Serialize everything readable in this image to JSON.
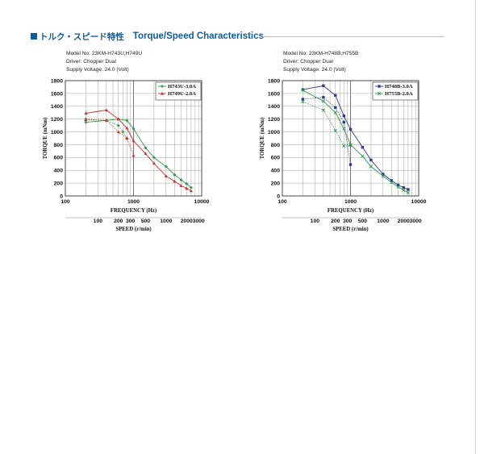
{
  "header": {
    "title_jp": "トルク・スピード特性",
    "title_en": "Torque/Speed Characteristics",
    "accent_color": "#0f5c98"
  },
  "chart_data": [
    {
      "type": "line",
      "info": [
        "Model No: 23KM-H743U,H749U",
        "Driver: Chopper Dual",
        "Supply Voltage: 24.0 (Volt)"
      ],
      "ylabel": "TORQUE (mNm)",
      "xlabel": "FREQUENCY (Hz)",
      "x2label": "SPEED (r/min)",
      "x_scale": "log",
      "xlim": [
        100,
        10000
      ],
      "ylim": [
        0,
        1800
      ],
      "yticks": [
        0,
        200,
        400,
        600,
        800,
        1000,
        1200,
        1400,
        1600,
        1800
      ],
      "xtick_labels": [
        {
          "v": 100,
          "t": "100"
        },
        {
          "v": 1000,
          "t": "1000"
        },
        {
          "v": 10000,
          "t": "10000"
        }
      ],
      "speed_ticks": [
        {
          "v": 100,
          "t": "100"
        },
        {
          "v": 200,
          "t": "200"
        },
        {
          "v": 300,
          "t": "300"
        },
        {
          "v": 500,
          "t": "500"
        },
        {
          "v": 1000,
          "t": "1000"
        },
        {
          "v": 2000,
          "t": "2000"
        },
        {
          "v": 3000,
          "t": "3000"
        }
      ],
      "speed_range": [
        33.3,
        3333
      ],
      "grid": true,
      "legend_position": "top-right",
      "series": [
        {
          "name": "H743U-3.0A",
          "color": "#2e9a4a",
          "marker": "diamond",
          "dashed": false,
          "x": [
            200,
            400,
            600,
            800,
            1000,
            1500,
            2000,
            3000,
            4000,
            5000,
            6000,
            7000
          ],
          "y": [
            1150,
            1180,
            1200,
            1180,
            1050,
            750,
            600,
            460,
            330,
            250,
            190,
            130
          ]
        },
        {
          "name": "H743U-3.0A",
          "color": "#2e9a4a",
          "marker": "diamond",
          "dashed": true,
          "x": [
            200,
            400,
            600,
            700,
            800
          ],
          "y": [
            1200,
            1180,
            1100,
            1000,
            900
          ]
        },
        {
          "name": "H749U-2.0A",
          "color": "#d62b2b",
          "marker": "triangle",
          "dashed": false,
          "x": [
            200,
            400,
            600,
            800,
            1000,
            1500,
            2000,
            3000,
            4000,
            5000,
            6000,
            7000
          ],
          "y": [
            1290,
            1340,
            1200,
            1060,
            860,
            660,
            510,
            310,
            230,
            160,
            120,
            80
          ]
        },
        {
          "name": "H749U-2.0A",
          "color": "#d62b2b",
          "marker": "triangle",
          "dashed": true,
          "x": [
            200,
            400,
            600,
            800,
            1000
          ],
          "y": [
            1190,
            1180,
            1000,
            900,
            630
          ]
        }
      ]
    },
    {
      "type": "line",
      "info": [
        "Model No: 23KM-H748B,H755B",
        "Driver: Chopper Dual",
        "Supply Voltage: 24.0 (Volt)"
      ],
      "ylabel": "TORQUE (mNm)",
      "xlabel": "FREQUENCY (Hz)",
      "x2label": "SPEED (r/min)",
      "x_scale": "log",
      "xlim": [
        100,
        10000
      ],
      "ylim": [
        0,
        1800
      ],
      "yticks": [
        0,
        200,
        400,
        600,
        800,
        1000,
        1200,
        1400,
        1600,
        1800
      ],
      "xtick_labels": [
        {
          "v": 100,
          "t": "100"
        },
        {
          "v": 1000,
          "t": "1000"
        },
        {
          "v": 10000,
          "t": "10000"
        }
      ],
      "speed_ticks": [
        {
          "v": 100,
          "t": "100"
        },
        {
          "v": 200,
          "t": "200"
        },
        {
          "v": 300,
          "t": "300"
        },
        {
          "v": 500,
          "t": "500"
        },
        {
          "v": 1000,
          "t": "1000"
        },
        {
          "v": 2000,
          "t": "2000"
        },
        {
          "v": 3000,
          "t": "3000"
        }
      ],
      "speed_range": [
        33.3,
        3333
      ],
      "grid": true,
      "legend_position": "top-right",
      "series": [
        {
          "name": "H748B-3.0A",
          "color": "#2c3f8f",
          "marker": "square",
          "dashed": false,
          "x": [
            200,
            400,
            600,
            800,
            1000,
            1500,
            2000,
            3000,
            4000,
            5000,
            6000,
            7000
          ],
          "y": [
            1660,
            1720,
            1570,
            1250,
            1040,
            760,
            560,
            340,
            240,
            170,
            130,
            100
          ]
        },
        {
          "name": "H748B-3.0A",
          "color": "#2c3f8f",
          "marker": "square",
          "dashed": true,
          "x": [
            200,
            400,
            600,
            800,
            1000
          ],
          "y": [
            1510,
            1540,
            1380,
            1150,
            490
          ]
        },
        {
          "name": "H755B-2.0A",
          "color": "#2e9a4a",
          "marker": "cross",
          "dashed": false,
          "x": [
            200,
            400,
            600,
            800,
            1000,
            1500,
            2000,
            3000,
            4000,
            5000,
            6000,
            7000
          ],
          "y": [
            1650,
            1480,
            1300,
            1050,
            800,
            620,
            460,
            310,
            210,
            140,
            90,
            50
          ]
        },
        {
          "name": "H755B-2.0A",
          "color": "#2e9a4a",
          "marker": "cross",
          "dashed": true,
          "x": [
            200,
            400,
            600,
            800,
            1000
          ],
          "y": [
            1470,
            1340,
            1020,
            780,
            790
          ]
        }
      ]
    }
  ]
}
